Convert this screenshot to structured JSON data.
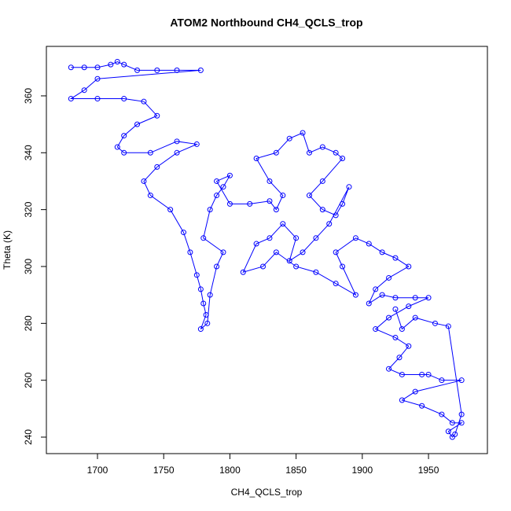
{
  "chart_data": {
    "type": "scatter",
    "title": "ATOM2 Northbound CH4_QCLS_trop",
    "x_label": "CH4_QCLS_trop",
    "y_label": "Theta (K)",
    "color": "#0000ff",
    "connect": true,
    "x": [
      1680,
      1690,
      1700,
      1710,
      1715,
      1720,
      1730,
      1745,
      1760,
      1778,
      1700,
      1690,
      1680,
      1700,
      1720,
      1735,
      1745,
      1730,
      1720,
      1715,
      1720,
      1740,
      1760,
      1775,
      1760,
      1745,
      1735,
      1740,
      1755,
      1765,
      1770,
      1775,
      1778,
      1780,
      1782,
      1778,
      1783,
      1785,
      1790,
      1795,
      1780,
      1785,
      1790,
      1795,
      1800,
      1790,
      1800,
      1815,
      1830,
      1835,
      1840,
      1830,
      1820,
      1835,
      1845,
      1855,
      1860,
      1870,
      1880,
      1885,
      1870,
      1860,
      1870,
      1880,
      1885,
      1890,
      1875,
      1865,
      1855,
      1845,
      1850,
      1840,
      1830,
      1820,
      1810,
      1825,
      1835,
      1850,
      1865,
      1880,
      1895,
      1885,
      1880,
      1895,
      1905,
      1915,
      1925,
      1935,
      1920,
      1910,
      1905,
      1915,
      1925,
      1940,
      1950,
      1935,
      1920,
      1910,
      1925,
      1935,
      1928,
      1920,
      1930,
      1945,
      1950,
      1960,
      1975,
      1940,
      1930,
      1945,
      1960,
      1968,
      1975,
      1965,
      1968,
      1970,
      1975,
      1965,
      1955,
      1940,
      1930,
      1925
    ],
    "values": [
      370,
      370,
      370,
      371,
      372,
      371,
      369,
      369,
      369,
      369,
      366,
      362,
      359,
      359,
      359,
      358,
      353,
      350,
      346,
      342,
      340,
      340,
      344,
      343,
      340,
      335,
      330,
      325,
      320,
      312,
      305,
      297,
      292,
      287,
      283,
      278,
      280,
      290,
      300,
      305,
      310,
      320,
      325,
      328,
      332,
      330,
      322,
      322,
      323,
      320,
      325,
      330,
      338,
      340,
      345,
      347,
      340,
      342,
      340,
      338,
      330,
      325,
      320,
      318,
      322,
      328,
      315,
      310,
      305,
      302,
      310,
      315,
      310,
      308,
      298,
      300,
      305,
      300,
      298,
      294,
      290,
      300,
      305,
      310,
      308,
      305,
      303,
      300,
      296,
      292,
      287,
      290,
      289,
      289,
      289,
      286,
      282,
      278,
      275,
      272,
      268,
      264,
      262,
      262,
      262,
      260,
      260,
      256,
      253,
      251,
      248,
      245,
      245,
      242,
      240,
      241,
      248,
      279,
      280,
      282,
      278,
      285
    ],
    "xlim": [
      1661.4,
      1994.5
    ],
    "ylim": [
      234.2,
      377.4
    ],
    "xticks": [
      1700,
      1750,
      1800,
      1850,
      1900,
      1950
    ],
    "yticks": [
      240,
      260,
      280,
      300,
      320,
      340,
      360
    ]
  }
}
